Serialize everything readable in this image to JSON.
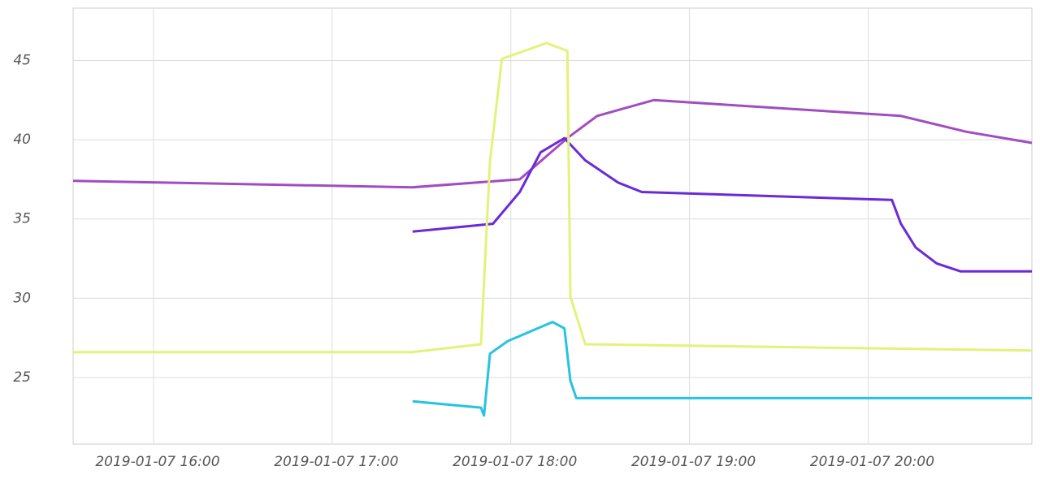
{
  "chart_data": {
    "type": "line",
    "xlim": [
      "2019-01-07 15:33",
      "2019-01-07 20:55"
    ],
    "xticks": [
      "2019-01-07 16:00",
      "2019-01-07 17:00",
      "2019-01-07 18:00",
      "2019-01-07 19:00",
      "2019-01-07 20:00"
    ],
    "ylim": [
      20.8,
      48.3
    ],
    "yticks": [
      25,
      30,
      35,
      40,
      45
    ],
    "grid": true,
    "series": [
      {
        "color": "#a24cc2",
        "x": [
          "2019-01-07 15:33",
          "2019-01-07 17:27",
          "2019-01-07 18:03",
          "2019-01-07 18:19",
          "2019-01-07 18:29",
          "2019-01-07 18:48",
          "2019-01-07 20:11",
          "2019-01-07 20:33",
          "2019-01-07 20:55"
        ],
        "values": [
          37.4,
          37.0,
          37.5,
          40.1,
          41.5,
          42.5,
          41.5,
          40.5,
          39.8
        ]
      },
      {
        "color": "#6a2ad8",
        "x": [
          "2019-01-07 17:27",
          "2019-01-07 17:54",
          "2019-01-07 18:03",
          "2019-01-07 18:10",
          "2019-01-07 18:18",
          "2019-01-07 18:25",
          "2019-01-07 18:36",
          "2019-01-07 18:44",
          "2019-01-07 20:08",
          "2019-01-07 20:11",
          "2019-01-07 20:16",
          "2019-01-07 20:23",
          "2019-01-07 20:31",
          "2019-01-07 20:55"
        ],
        "values": [
          34.2,
          34.7,
          36.7,
          39.2,
          40.1,
          38.7,
          37.3,
          36.7,
          36.2,
          34.7,
          33.2,
          32.2,
          31.7,
          31.7
        ]
      },
      {
        "color": "#e3f27a",
        "x": [
          "2019-01-07 15:33",
          "2019-01-07 17:27",
          "2019-01-07 17:50",
          "2019-01-07 17:53",
          "2019-01-07 17:57",
          "2019-01-07 18:12",
          "2019-01-07 18:19",
          "2019-01-07 18:20",
          "2019-01-07 18:25",
          "2019-01-07 20:55"
        ],
        "values": [
          26.6,
          26.6,
          27.1,
          38.6,
          45.1,
          46.1,
          45.6,
          30.1,
          27.1,
          26.7
        ]
      },
      {
        "color": "#27c3e0",
        "x": [
          "2019-01-07 17:27",
          "2019-01-07 17:50",
          "2019-01-07 17:51",
          "2019-01-07 17:53",
          "2019-01-07 17:59",
          "2019-01-07 18:14",
          "2019-01-07 18:18",
          "2019-01-07 18:20",
          "2019-01-07 18:22",
          "2019-01-07 20:55"
        ],
        "values": [
          23.5,
          23.1,
          22.6,
          26.5,
          27.3,
          28.5,
          28.1,
          24.8,
          23.7,
          23.7
        ]
      }
    ]
  }
}
